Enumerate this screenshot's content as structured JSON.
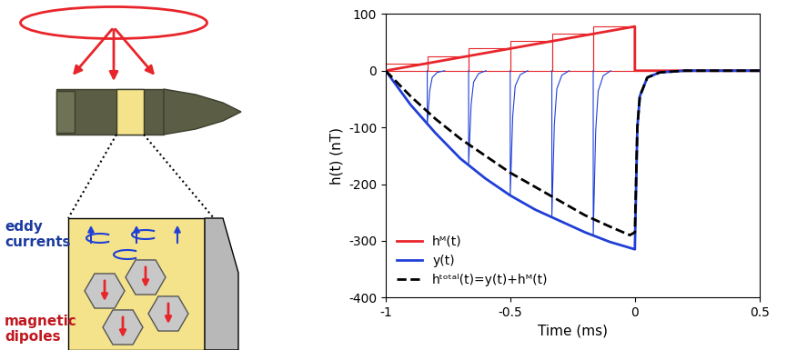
{
  "diagram": {
    "labels": [
      {
        "text": "eddy\ncurrents",
        "color": "#1a3a9e"
      },
      {
        "text": "magnetic\ndipoles",
        "color": "#c0181e"
      }
    ]
  },
  "chart_data": {
    "type": "line",
    "xlabel": "Time (ms)",
    "ylabel": "h(t) (nT)",
    "xlim": [
      -1,
      0.5
    ],
    "ylim": [
      -400,
      100
    ],
    "xticks": [
      -1,
      -0.5,
      0,
      0.5
    ],
    "yticks": [
      -400,
      -300,
      -200,
      -100,
      0,
      100
    ],
    "legend": "lower left",
    "series": [
      {
        "name": "hᴹ(t)",
        "color": "#e8252a",
        "line_style": "solid",
        "x": [
          -1,
          0,
          0,
          0.5
        ],
        "values": [
          0,
          78,
          0,
          0
        ]
      },
      {
        "name": "y(t)",
        "color": "#1f3fd6",
        "line_style": "solid",
        "x": [
          -1,
          -0.9,
          -0.8,
          -0.7,
          -0.6,
          -0.5,
          -0.4,
          -0.3,
          -0.2,
          -0.1,
          0,
          0.01,
          0.02,
          0.05,
          0.1,
          0.2,
          0.5
        ],
        "values": [
          0,
          -60,
          -110,
          -155,
          -190,
          -220,
          -245,
          -265,
          -285,
          -302,
          -315,
          -100,
          -45,
          -12,
          -3,
          0,
          0
        ]
      },
      {
        "name": "hᵗᵒᵗᵃˡ(t)=y(t)+hᴹ(t)",
        "color": "#000000",
        "line_style": "dashed",
        "x": [
          -1,
          -0.9,
          -0.8,
          -0.7,
          -0.6,
          -0.5,
          -0.4,
          -0.3,
          -0.2,
          -0.1,
          -0.02,
          0,
          0.01,
          0.02,
          0.05,
          0.1,
          0.2,
          0.5
        ],
        "values": [
          0,
          -45,
          -85,
          -120,
          -150,
          -180,
          -205,
          -230,
          -255,
          -275,
          -290,
          -285,
          -100,
          -45,
          -12,
          -3,
          0,
          0
        ]
      },
      {
        "type": "bar",
        "color": "#e8252a",
        "bins": [
          -1,
          -0.833,
          -0.667,
          -0.5,
          -0.333,
          -0.167,
          0
        ],
        "values": [
          13,
          26,
          39,
          52,
          65,
          78
        ]
      },
      {
        "color": "#1f3fd6",
        "line_style": "solid",
        "x": [
          -0.833,
          -0.833,
          -0.823,
          -0.813,
          -0.793,
          -0.763,
          null,
          -0.667,
          -0.667,
          -0.657,
          -0.647,
          -0.627,
          -0.597,
          null,
          -0.5,
          -0.5,
          -0.49,
          -0.48,
          -0.46,
          -0.43,
          null,
          -0.333,
          -0.333,
          -0.323,
          -0.313,
          -0.293,
          -0.263,
          null,
          -0.167,
          -0.167,
          -0.157,
          -0.147,
          -0.127,
          -0.097
        ],
        "values": [
          0,
          -95,
          -35,
          -12,
          -3,
          0,
          null,
          0,
          -165,
          -60,
          -20,
          -5,
          0,
          null,
          0,
          -220,
          -80,
          -27,
          -7,
          0,
          null,
          0,
          -258,
          -95,
          -32,
          -8,
          0,
          null,
          0,
          -290,
          -105,
          -36,
          -9,
          0
        ]
      }
    ]
  }
}
